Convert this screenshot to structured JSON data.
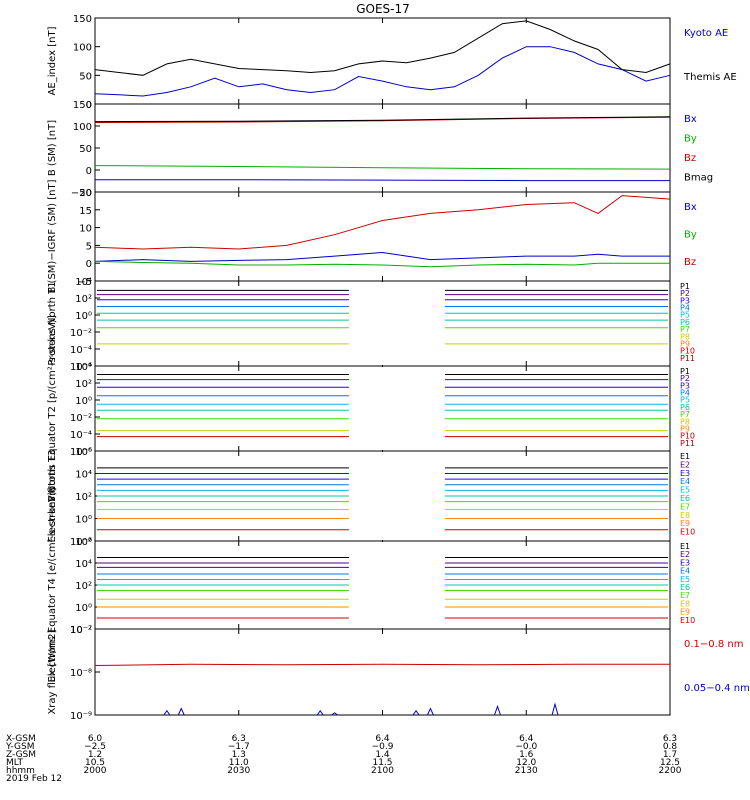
{
  "title": "GOES-17",
  "chart_data": [
    {
      "type": "line",
      "ylabel": "AE_index [nT]",
      "ylim": [
        0,
        150
      ],
      "yticks": [
        "0",
        "50",
        "100",
        "150"
      ],
      "x_minutes_from_2000": [
        0,
        5,
        10,
        15,
        20,
        25,
        30,
        35,
        40,
        45,
        50,
        55,
        60,
        65,
        70,
        75,
        80,
        85,
        90,
        95,
        100,
        105,
        110,
        115,
        120
      ],
      "series": [
        {
          "name": "Kyoto AE",
          "color": "#0000cc",
          "values": [
            18,
            16,
            14,
            20,
            30,
            45,
            30,
            35,
            25,
            20,
            25,
            48,
            40,
            30,
            25,
            30,
            50,
            80,
            100,
            100,
            90,
            70,
            60,
            40,
            50
          ]
        },
        {
          "name": "Themis AE",
          "color": "#000000",
          "values": [
            60,
            55,
            50,
            70,
            78,
            70,
            62,
            60,
            58,
            55,
            58,
            70,
            75,
            72,
            80,
            90,
            115,
            140,
            145,
            130,
            110,
            95,
            60,
            55,
            70
          ]
        }
      ]
    },
    {
      "type": "line",
      "ylabel": "B (SM) [nT]",
      "ylim": [
        -50,
        150
      ],
      "yticks": [
        "−50",
        "0",
        "50",
        "100",
        "150"
      ],
      "x_minutes_from_2000": [
        0,
        30,
        60,
        90,
        120
      ],
      "series": [
        {
          "name": "Bx",
          "color": "#0000cc",
          "values": [
            -22,
            -22,
            -23,
            -24,
            -24
          ]
        },
        {
          "name": "By",
          "color": "#00b000",
          "values": [
            10,
            8,
            5,
            3,
            2
          ]
        },
        {
          "name": "Bz",
          "color": "#cc0000",
          "values": [
            108,
            109,
            112,
            117,
            120
          ]
        },
        {
          "name": "Bmag",
          "color": "#000000",
          "values": [
            110,
            111,
            113,
            118,
            121
          ]
        }
      ]
    },
    {
      "type": "line",
      "ylabel": "B (SM)−IGRF (SM) [nT]",
      "ylim": [
        -5,
        20
      ],
      "yticks": [
        "−5",
        "0",
        "5",
        "10",
        "15",
        "20"
      ],
      "x_minutes_from_2000": [
        0,
        10,
        20,
        30,
        40,
        50,
        60,
        70,
        80,
        90,
        100,
        105,
        110,
        120
      ],
      "series": [
        {
          "name": "Bx",
          "color": "#0000cc",
          "values": [
            0.5,
            1,
            0.5,
            0.8,
            1,
            2,
            3,
            1,
            1.5,
            2,
            2,
            2.5,
            2,
            2
          ]
        },
        {
          "name": "By",
          "color": "#00b000",
          "values": [
            0.5,
            0.2,
            0,
            -0.5,
            -0.5,
            -0.3,
            -0.5,
            -1,
            -0.5,
            -0.3,
            -0.5,
            0,
            0,
            0
          ]
        },
        {
          "name": "Bz",
          "color": "#cc0000",
          "values": [
            4.5,
            4,
            4.5,
            4,
            5,
            8,
            12,
            14,
            15,
            16.5,
            17,
            14,
            19,
            18
          ]
        }
      ]
    },
    {
      "type": "line",
      "ylabel": "Protons North T1",
      "log_scale": true,
      "ylim_exp": [
        -6,
        4
      ],
      "yticks": [
        "10⁴",
        "10²",
        "10⁰",
        "10⁻²",
        "10⁻⁴",
        "10⁻⁶"
      ],
      "gap_minutes_from_2000": [
        53,
        73
      ],
      "channels": [
        {
          "name": "P1",
          "color": "#000000",
          "log_value": 2.9
        },
        {
          "name": "P2",
          "color": "#550088",
          "log_value": 2.4
        },
        {
          "name": "P3",
          "color": "#2200ee",
          "log_value": 1.8
        },
        {
          "name": "P4",
          "color": "#0077ee",
          "log_value": 1.0
        },
        {
          "name": "P5",
          "color": "#00bbdd",
          "log_value": 0.2
        },
        {
          "name": "P6",
          "color": "#00c8a0",
          "log_value": -0.6
        },
        {
          "name": "P7",
          "color": "#44dd00",
          "log_value": -1.5
        },
        {
          "name": "P8",
          "color": "#cccc00",
          "log_value": -3.4
        },
        {
          "name": "P9",
          "color": "#ff8800",
          "log_value": null
        },
        {
          "name": "P10",
          "color": "#cc0000",
          "log_value": null
        },
        {
          "name": "P11",
          "color": "#990000",
          "log_value": null
        }
      ]
    },
    {
      "type": "line",
      "ylabel": "Protons Equator T2 [p/(cm²-s-sr-keV)]",
      "log_scale": true,
      "ylim_exp": [
        -6,
        4
      ],
      "yticks": [
        "10⁴",
        "10²",
        "10⁰",
        "10⁻²",
        "10⁻⁴",
        "10⁻⁶"
      ],
      "gap_minutes_from_2000": [
        53,
        73
      ],
      "channels": [
        {
          "name": "P1",
          "color": "#000000",
          "log_value": 3.0
        },
        {
          "name": "P2",
          "color": "#550088",
          "log_value": 2.4
        },
        {
          "name": "P3",
          "color": "#2200ee",
          "log_value": 1.5
        },
        {
          "name": "P4",
          "color": "#0077ee",
          "log_value": 0.5
        },
        {
          "name": "P5",
          "color": "#00bbdd",
          "log_value": -0.5
        },
        {
          "name": "P6",
          "color": "#00c8a0",
          "log_value": -1.2
        },
        {
          "name": "P7",
          "color": "#44dd00",
          "log_value": -2.2
        },
        {
          "name": "P8",
          "color": "#cccc00",
          "log_value": -3.6
        },
        {
          "name": "P9",
          "color": "#ff8800",
          "log_value": null
        },
        {
          "name": "P10",
          "color": "#cc0000",
          "log_value": -4.3
        },
        {
          "name": "P11",
          "color": "#990000",
          "log_value": null
        }
      ]
    },
    {
      "type": "line",
      "ylabel": "Electrons North T3",
      "log_scale": true,
      "ylim_exp": [
        -2,
        6
      ],
      "yticks": [
        "10⁶",
        "10⁴",
        "10²",
        "10⁰",
        "10⁻²"
      ],
      "gap_minutes_from_2000": [
        53,
        73
      ],
      "channels": [
        {
          "name": "E1",
          "color": "#000000",
          "log_value": 4.5
        },
        {
          "name": "E2",
          "color": "#550088",
          "log_value": 4.0
        },
        {
          "name": "E3",
          "color": "#2200ee",
          "log_value": 3.5
        },
        {
          "name": "E4",
          "color": "#0077ee",
          "log_value": 3.0
        },
        {
          "name": "E5",
          "color": "#00bbdd",
          "log_value": 2.5
        },
        {
          "name": "E6",
          "color": "#00c8a0",
          "log_value": 2.0
        },
        {
          "name": "E7",
          "color": "#44dd00",
          "log_value": 1.5
        },
        {
          "name": "E8",
          "color": "#cccc00",
          "log_value": 0.8
        },
        {
          "name": "E9",
          "color": "#ff8800",
          "log_value": 0.0
        },
        {
          "name": "E10",
          "color": "#cc0000",
          "log_value": -1.0
        }
      ]
    },
    {
      "type": "line",
      "ylabel": "Electrons Equator T4 [e/(cm²-s-sr-keV)]",
      "log_scale": true,
      "ylim_exp": [
        -2,
        6
      ],
      "yticks": [
        "10⁶",
        "10⁴",
        "10²",
        "10⁰",
        "10⁻²"
      ],
      "gap_minutes_from_2000": [
        53,
        73
      ],
      "channels": [
        {
          "name": "E1",
          "color": "#000000",
          "log_value": 4.5
        },
        {
          "name": "E2",
          "color": "#550088",
          "log_value": 4.0
        },
        {
          "name": "E3",
          "color": "#2200ee",
          "log_value": 3.6
        },
        {
          "name": "E4",
          "color": "#0077ee",
          "log_value": 3.0
        },
        {
          "name": "E5",
          "color": "#00bbdd",
          "log_value": 2.5
        },
        {
          "name": "E6",
          "color": "#00c8a0",
          "log_value": 2.0
        },
        {
          "name": "E7",
          "color": "#44dd00",
          "log_value": 1.5
        },
        {
          "name": "E8",
          "color": "#cccc00",
          "log_value": 0.7
        },
        {
          "name": "E9",
          "color": "#ff8800",
          "log_value": 0.0
        },
        {
          "name": "E10",
          "color": "#cc0000",
          "log_value": -1.0
        }
      ]
    },
    {
      "type": "line",
      "ylabel": "Xray flux [W/m2]",
      "log_scale": true,
      "ylim_exp": [
        -9,
        -7
      ],
      "yticks": [
        "10⁻⁷",
        "10⁻⁸",
        "10⁻⁹"
      ],
      "x_minutes_from_2000": [
        0,
        20,
        40,
        60,
        80,
        100,
        120
      ],
      "series": [
        {
          "name": "0.1−0.8 nm",
          "color": "#cc0000",
          "log_values": [
            -7.85,
            -7.82,
            -7.83,
            -7.82,
            -7.83,
            -7.82,
            -7.82
          ]
        },
        {
          "name": "0.05−0.4 nm",
          "color": "#0000cc",
          "spikes_minutes": [
            15,
            18,
            47,
            50,
            67,
            70,
            84,
            96
          ],
          "spike_log_values": [
            -8.9,
            -8.85,
            -8.9,
            -8.95,
            -8.9,
            -8.85,
            -8.8,
            -8.75
          ]
        }
      ]
    }
  ],
  "ephemeris": {
    "row_labels": [
      "X-GSM",
      "Y-GSM",
      "Z-GSM",
      "MLT",
      "hhmm",
      "2019 Feb 12"
    ],
    "columns": [
      {
        "x": "6.0",
        "y": "−2.5",
        "z": "1.2",
        "mlt": "10.5",
        "hhmm": "2000"
      },
      {
        "x": "6.3",
        "y": "−1.7",
        "z": "1.3",
        "mlt": "11.0",
        "hhmm": "2030"
      },
      {
        "x": "6.4",
        "y": "−0.9",
        "z": "1.4",
        "mlt": "11.5",
        "hhmm": "2100"
      },
      {
        "x": "6.4",
        "y": "−0.0",
        "z": "1.6",
        "mlt": "12.0",
        "hhmm": "2130"
      },
      {
        "x": "6.3",
        "y": "0.8",
        "z": "1.7",
        "mlt": "12.5",
        "hhmm": "2200"
      }
    ]
  }
}
